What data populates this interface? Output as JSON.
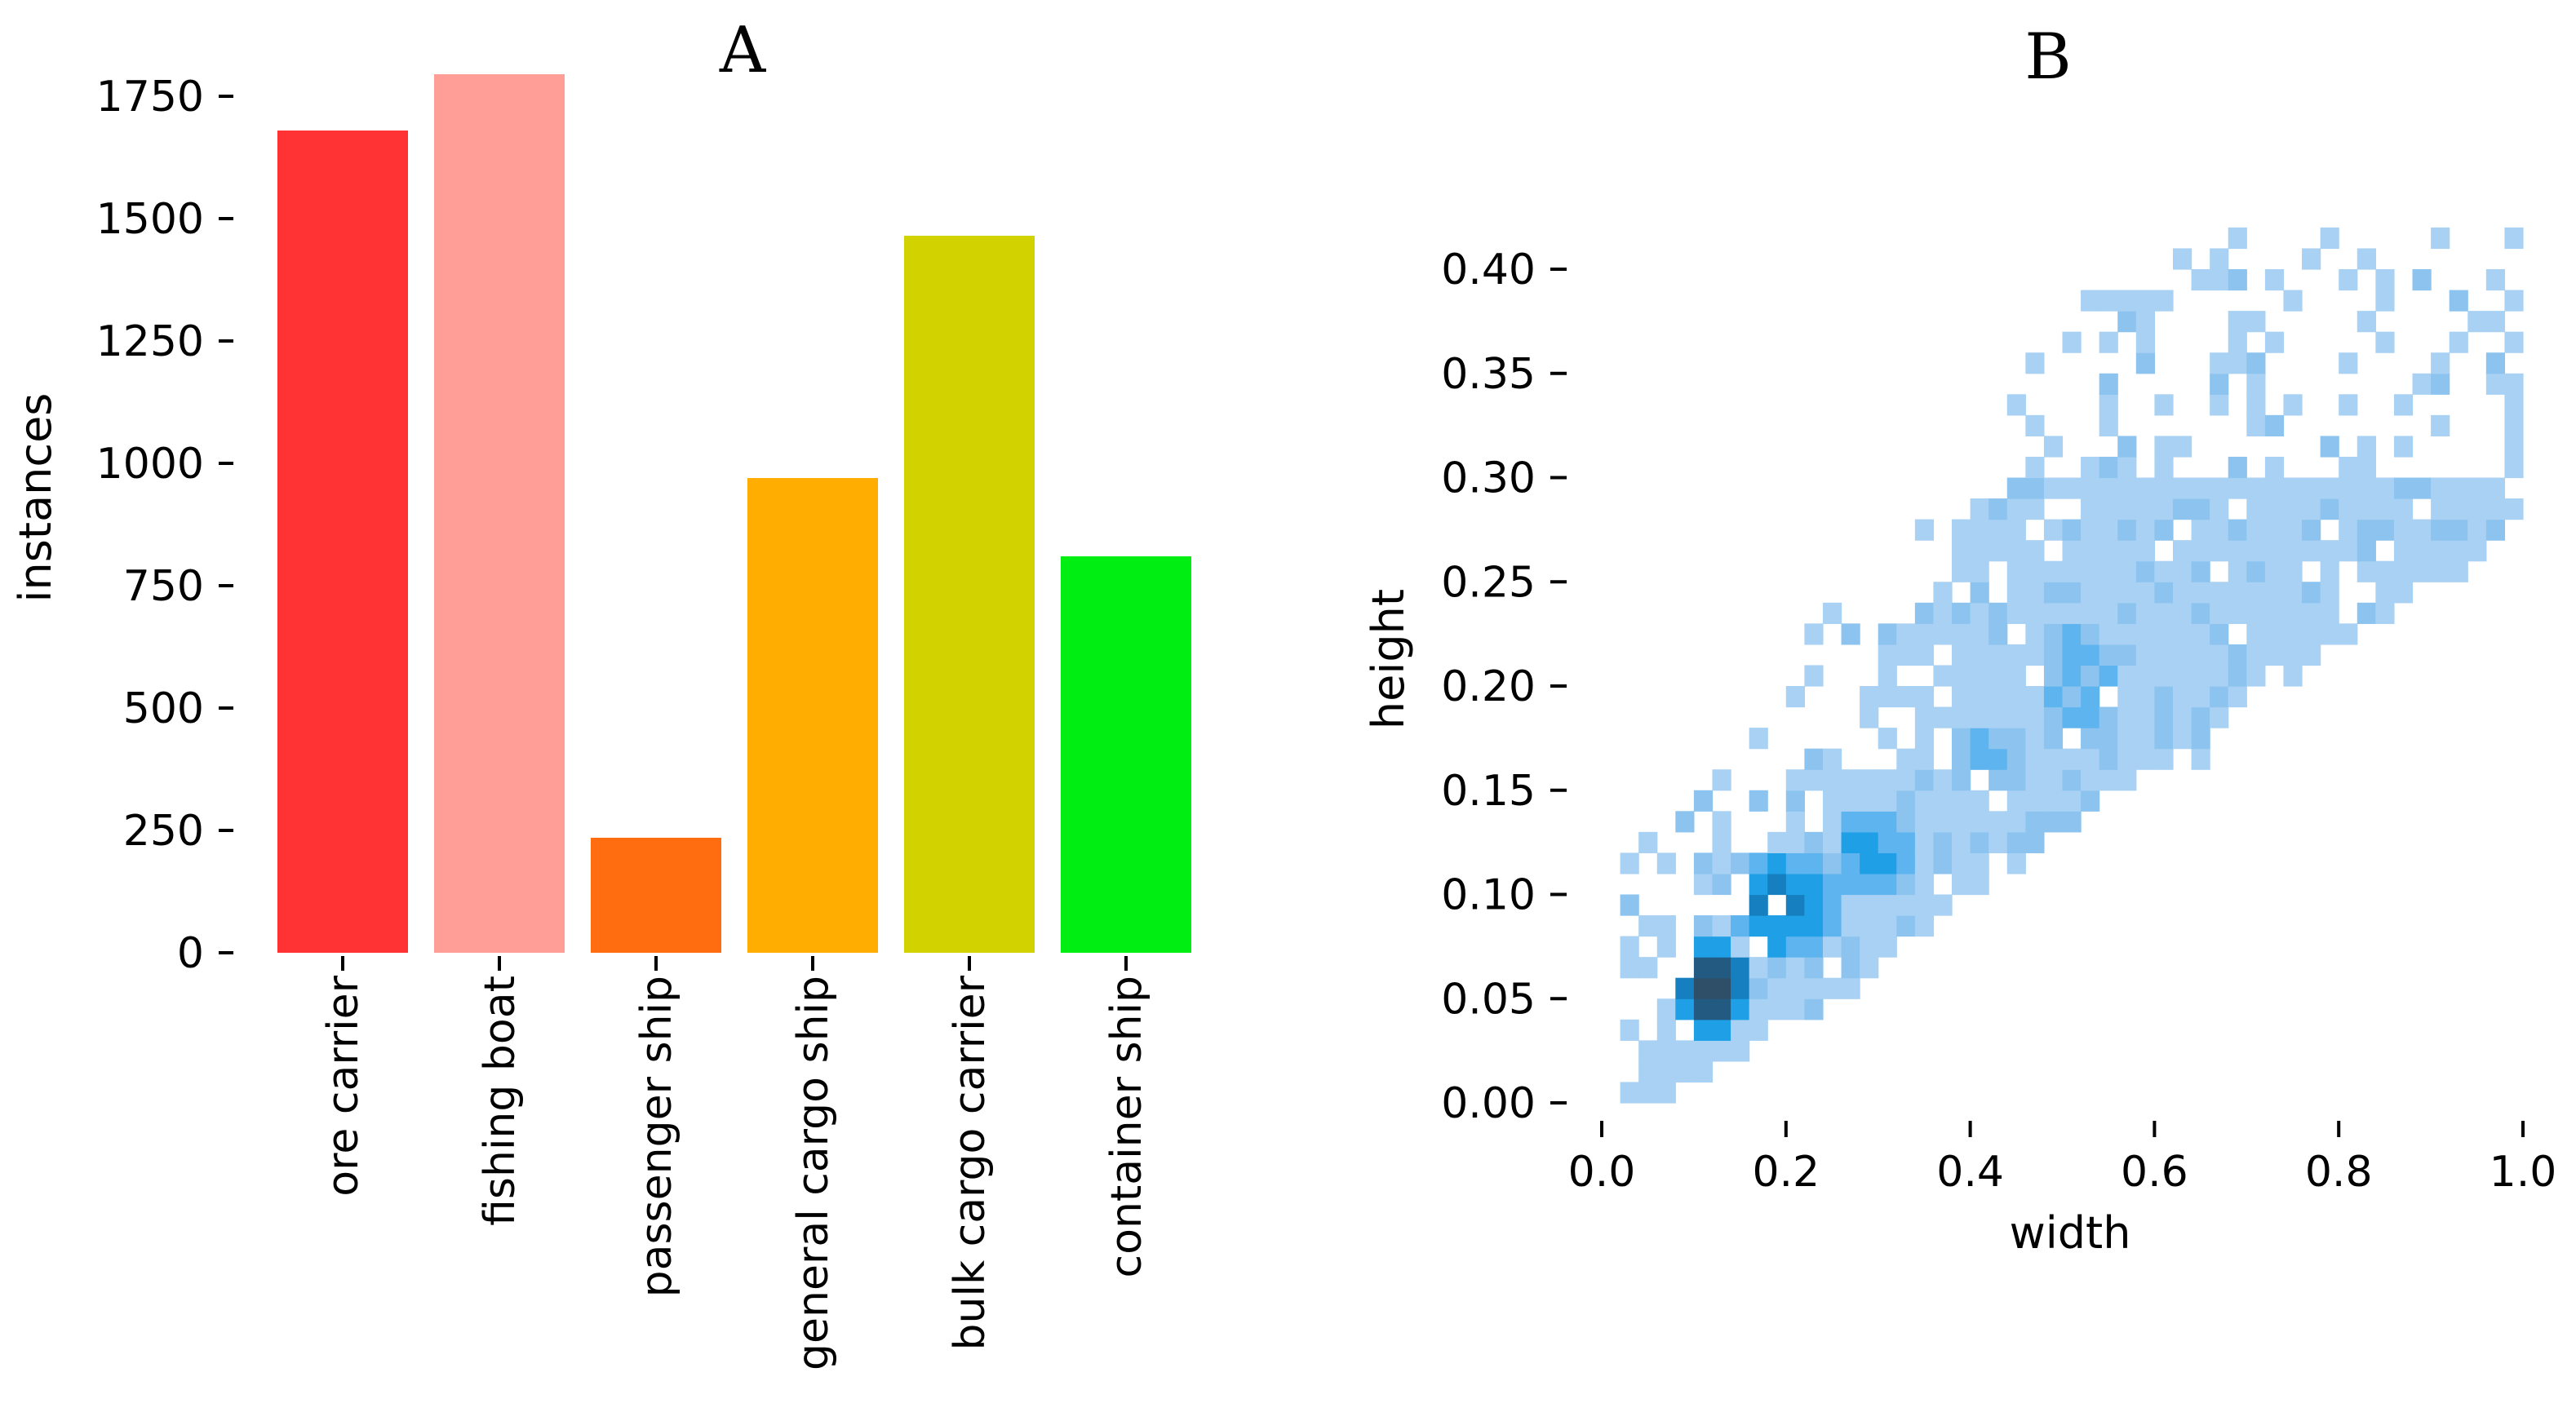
{
  "chart_data": [
    {
      "panel_label": "A",
      "type": "bar",
      "title": "",
      "xlabel": "",
      "ylabel": "instances",
      "ylim": [
        0,
        1800
      ],
      "yticks": [
        0,
        250,
        500,
        750,
        1000,
        1250,
        1500,
        1750
      ],
      "ytick_labels": [
        "0",
        "250",
        "500",
        "750",
        "1000",
        "1250",
        "1500",
        "1750"
      ],
      "grid": false,
      "categories": [
        "ore carrier",
        "fishing boat",
        "passenger ship",
        "general cargo ship",
        "bulk cargo carrier",
        "container ship"
      ],
      "values": [
        1680,
        1795,
        235,
        970,
        1465,
        810
      ],
      "colors": [
        "#ff3333",
        "#ff9e96",
        "#ff6d10",
        "#ffad00",
        "#d2d200",
        "#00ee11"
      ]
    },
    {
      "panel_label": "B",
      "type": "heatmap",
      "title": "",
      "xlabel": "width",
      "ylabel": "height",
      "xlim": [
        0.0,
        1.0
      ],
      "ylim": [
        0.0,
        0.42
      ],
      "xticks": [
        0.0,
        0.2,
        0.4,
        0.6,
        0.8,
        1.0
      ],
      "xtick_labels": [
        "0.0",
        "0.2",
        "0.4",
        "0.6",
        "0.8",
        "1.0"
      ],
      "yticks": [
        0.0,
        0.05,
        0.1,
        0.15,
        0.2,
        0.25,
        0.3,
        0.35,
        0.4
      ],
      "ytick_labels": [
        "0.00",
        "0.05",
        "0.10",
        "0.15",
        "0.20",
        "0.25",
        "0.30",
        "0.35",
        "0.40"
      ],
      "grid": false,
      "bins_x": 50,
      "bins_y": 42,
      "colors": [
        "#a9d1f3",
        "#8cc4ef",
        "#5eb4ee",
        "#1f9fe6",
        "#157fbf",
        "#235a82",
        "#2f4f68"
      ],
      "hot_regions": [
        {
          "x": 0.12,
          "y": 0.055,
          "sx": 0.045,
          "sy": 0.022,
          "level": 6
        },
        {
          "x": 0.2,
          "y": 0.095,
          "sx": 0.06,
          "sy": 0.025,
          "level": 4
        },
        {
          "x": 0.3,
          "y": 0.12,
          "sx": 0.05,
          "sy": 0.02,
          "level": 3
        },
        {
          "x": 0.42,
          "y": 0.165,
          "sx": 0.05,
          "sy": 0.02,
          "level": 2
        },
        {
          "x": 0.52,
          "y": 0.2,
          "sx": 0.04,
          "sy": 0.03,
          "level": 2
        }
      ]
    }
  ]
}
